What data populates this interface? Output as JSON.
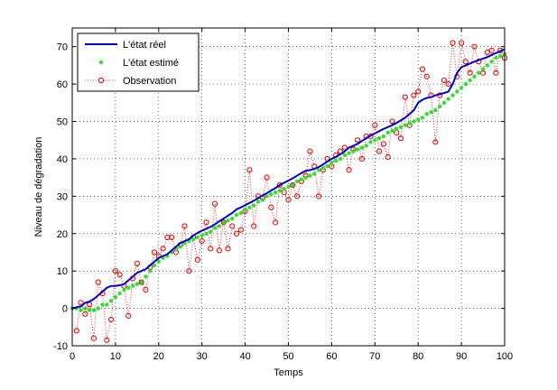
{
  "chart_data": {
    "type": "line",
    "title": "",
    "xlabel": "Temps",
    "ylabel": "Niveau de dégradation",
    "xlim": [
      0,
      100
    ],
    "ylim": [
      -10,
      75
    ],
    "xticks": [
      0,
      10,
      20,
      30,
      40,
      50,
      60,
      70,
      80,
      90,
      100
    ],
    "yticks": [
      -10,
      0,
      10,
      20,
      30,
      40,
      50,
      60,
      70
    ],
    "grid": true,
    "legend_position": "top-left",
    "colors": {
      "true_state": "#0000cc",
      "estimate": "#33dd33",
      "observation": "#dd0000"
    },
    "series": [
      {
        "name": "L'état réel",
        "style": "solid-line",
        "x": [
          0,
          1,
          2,
          3,
          4,
          5,
          6,
          7,
          8,
          9,
          10,
          11,
          12,
          13,
          14,
          15,
          16,
          17,
          18,
          19,
          20,
          21,
          22,
          23,
          24,
          25,
          26,
          27,
          28,
          29,
          30,
          31,
          32,
          33,
          34,
          35,
          36,
          37,
          38,
          39,
          40,
          41,
          42,
          43,
          44,
          45,
          46,
          47,
          48,
          49,
          50,
          51,
          52,
          53,
          54,
          55,
          56,
          57,
          58,
          59,
          60,
          61,
          62,
          63,
          64,
          65,
          66,
          67,
          68,
          69,
          70,
          71,
          72,
          73,
          74,
          75,
          76,
          77,
          78,
          79,
          80,
          81,
          82,
          83,
          84,
          85,
          86,
          87,
          88,
          89,
          90,
          91,
          92,
          93,
          94,
          95,
          96,
          97,
          98,
          99,
          100
        ],
        "values": [
          0,
          0.3,
          0.5,
          1.5,
          1.8,
          2.5,
          3.5,
          4.5,
          5.5,
          6,
          6,
          6.2,
          6.5,
          7.5,
          8.5,
          9.5,
          10,
          10.5,
          11.5,
          12.5,
          13.5,
          14,
          14.5,
          15.5,
          16.5,
          17.5,
          18,
          18.5,
          19.5,
          20.2,
          20.8,
          21.3,
          21.8,
          22.5,
          23.3,
          24,
          24.8,
          25.5,
          26.5,
          27,
          27.6,
          28.2,
          28.8,
          29.5,
          30.2,
          30.8,
          31.5,
          32.2,
          33,
          33.6,
          34.2,
          34.8,
          35.5,
          36.2,
          36.8,
          37,
          37.3,
          37.8,
          38.5,
          39.3,
          40,
          40.6,
          41.2,
          42,
          43,
          43.5,
          44,
          44.8,
          45.5,
          46.2,
          46.8,
          47.4,
          48,
          48.5,
          49,
          49.6,
          50.3,
          51,
          52,
          53,
          55,
          55.8,
          56.3,
          56.5,
          57,
          57.3,
          57.6,
          58,
          60,
          63,
          64.5,
          65,
          65.5,
          66,
          66.4,
          66.8,
          67.2,
          67.8,
          68.3,
          68.8,
          69.3
        ]
      },
      {
        "name": "L'état estimé",
        "style": "dot-markers",
        "x": [
          0,
          1,
          2,
          3,
          4,
          5,
          6,
          7,
          8,
          9,
          10,
          11,
          12,
          13,
          14,
          15,
          16,
          17,
          18,
          19,
          20,
          21,
          22,
          23,
          24,
          25,
          26,
          27,
          28,
          29,
          30,
          31,
          32,
          33,
          34,
          35,
          36,
          37,
          38,
          39,
          40,
          41,
          42,
          43,
          44,
          45,
          46,
          47,
          48,
          49,
          50,
          51,
          52,
          53,
          54,
          55,
          56,
          57,
          58,
          59,
          60,
          61,
          62,
          63,
          64,
          65,
          66,
          67,
          68,
          69,
          70,
          71,
          72,
          73,
          74,
          75,
          76,
          77,
          78,
          79,
          80,
          81,
          82,
          83,
          84,
          85,
          86,
          87,
          88,
          89,
          90,
          91,
          92,
          93,
          94,
          95,
          96,
          97,
          98,
          99,
          100
        ],
        "values": [
          0,
          0,
          -0.5,
          0,
          -0.5,
          -0.5,
          0,
          1,
          1,
          2,
          3,
          4,
          5,
          5.5,
          6,
          6.5,
          7,
          8.5,
          10,
          11.5,
          12.5,
          13.5,
          14,
          15,
          16,
          16.5,
          17.5,
          18,
          18.5,
          19,
          19.5,
          20,
          20.5,
          21.5,
          22,
          23,
          23.5,
          24,
          25,
          25.5,
          26.5,
          27,
          27.5,
          28.5,
          29,
          30,
          30.5,
          31,
          31.5,
          32,
          32.5,
          33,
          34,
          34.5,
          35,
          35.5,
          36,
          37,
          37.5,
          38,
          39,
          39.5,
          40,
          41,
          41.5,
          42,
          42.5,
          43,
          43.5,
          44.5,
          45,
          45.5,
          46,
          47,
          47.5,
          48,
          48.5,
          49,
          49.5,
          50,
          50.5,
          51,
          52,
          52.5,
          53,
          54,
          55,
          56,
          57,
          58,
          59,
          60,
          61,
          62,
          63,
          64,
          65,
          66,
          67,
          67.5,
          68
        ]
      },
      {
        "name": "Observation",
        "style": "circle-markers-dotted",
        "x": [
          1,
          2,
          3,
          4,
          5,
          6,
          7,
          8,
          9,
          10,
          11,
          12,
          13,
          14,
          15,
          16,
          17,
          18,
          19,
          20,
          21,
          22,
          23,
          24,
          25,
          26,
          27,
          28,
          29,
          30,
          31,
          32,
          33,
          34,
          35,
          36,
          37,
          38,
          39,
          40,
          41,
          42,
          43,
          44,
          45,
          46,
          47,
          48,
          49,
          50,
          51,
          52,
          53,
          54,
          55,
          56,
          57,
          58,
          59,
          60,
          61,
          62,
          63,
          64,
          65,
          66,
          67,
          68,
          69,
          70,
          71,
          72,
          73,
          74,
          75,
          76,
          77,
          78,
          79,
          80,
          81,
          82,
          83,
          84,
          85,
          86,
          87,
          88,
          89,
          90,
          91,
          92,
          93,
          94,
          95,
          96,
          97,
          98,
          99,
          100
        ],
        "values": [
          -6,
          1.5,
          -1.5,
          1,
          -8,
          7,
          4,
          -8.5,
          -3,
          10,
          9,
          6,
          -2,
          8,
          12,
          7,
          5,
          11,
          15,
          14,
          16,
          19,
          19,
          15,
          17,
          22,
          10,
          19,
          13,
          18,
          23,
          16,
          28,
          15.5,
          23,
          16,
          22,
          20,
          21,
          26,
          37,
          22,
          30,
          29.5,
          35,
          27,
          23,
          33,
          31,
          29,
          33,
          30,
          34,
          35.5,
          42,
          38,
          30,
          37,
          40,
          38,
          41,
          42,
          43,
          37,
          42.5,
          45,
          40,
          46,
          46,
          49,
          42,
          44,
          40.5,
          50,
          47,
          45.5,
          56.5,
          49,
          57,
          58,
          64,
          62,
          57,
          44.5,
          57,
          61,
          60,
          71,
          62,
          71,
          66,
          63,
          70,
          66,
          63,
          68.5,
          69,
          63,
          69,
          67
        ]
      }
    ]
  }
}
